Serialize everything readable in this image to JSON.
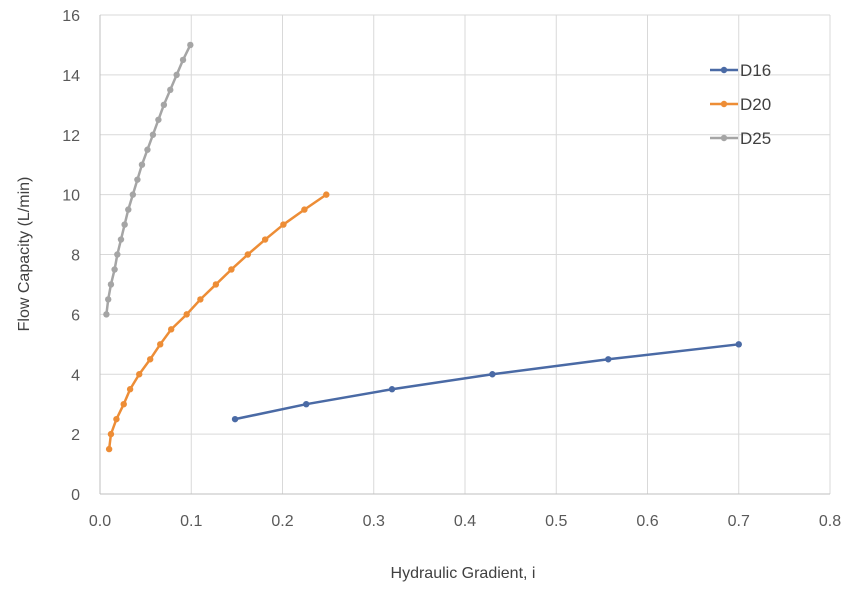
{
  "chart_data": {
    "type": "line",
    "xlabel": "Hydraulic Gradient, i",
    "ylabel": "Flow Capacity (L/min)",
    "xlim": [
      0,
      0.8
    ],
    "ylim": [
      0,
      16
    ],
    "xticks": [
      "0.0",
      "0.1",
      "0.2",
      "0.3",
      "0.4",
      "0.5",
      "0.6",
      "0.7",
      "0.8"
    ],
    "yticks": [
      "0",
      "2",
      "4",
      "6",
      "8",
      "10",
      "12",
      "14",
      "16"
    ],
    "grid": true,
    "legend_position": "top-right",
    "series": [
      {
        "name": "D16",
        "color": "#4a6aa5",
        "points": [
          [
            0.148,
            2.5
          ],
          [
            0.226,
            3.0
          ],
          [
            0.32,
            3.5
          ],
          [
            0.43,
            4.0
          ],
          [
            0.557,
            4.5
          ],
          [
            0.7,
            5.0
          ]
        ]
      },
      {
        "name": "D20",
        "color": "#ed8d36",
        "points": [
          [
            0.01,
            1.5
          ],
          [
            0.012,
            2.0
          ],
          [
            0.018,
            2.5
          ],
          [
            0.026,
            3.0
          ],
          [
            0.033,
            3.5
          ],
          [
            0.043,
            4.0
          ],
          [
            0.055,
            4.5
          ],
          [
            0.066,
            5.0
          ],
          [
            0.078,
            5.5
          ],
          [
            0.095,
            6.0
          ],
          [
            0.11,
            6.5
          ],
          [
            0.127,
            7.0
          ],
          [
            0.144,
            7.5
          ],
          [
            0.162,
            8.0
          ],
          [
            0.181,
            8.5
          ],
          [
            0.201,
            9.0
          ],
          [
            0.224,
            9.5
          ],
          [
            0.248,
            10.0
          ]
        ]
      },
      {
        "name": "D25",
        "color": "#a5a5a5",
        "points": [
          [
            0.007,
            6.0
          ],
          [
            0.009,
            6.5
          ],
          [
            0.012,
            7.0
          ],
          [
            0.016,
            7.5
          ],
          [
            0.019,
            8.0
          ],
          [
            0.023,
            8.5
          ],
          [
            0.027,
            9.0
          ],
          [
            0.031,
            9.5
          ],
          [
            0.036,
            10.0
          ],
          [
            0.041,
            10.5
          ],
          [
            0.046,
            11.0
          ],
          [
            0.052,
            11.5
          ],
          [
            0.058,
            12.0
          ],
          [
            0.064,
            12.5
          ],
          [
            0.07,
            13.0
          ],
          [
            0.077,
            13.5
          ],
          [
            0.084,
            14.0
          ],
          [
            0.091,
            14.5
          ],
          [
            0.099,
            15.0
          ]
        ]
      }
    ]
  }
}
